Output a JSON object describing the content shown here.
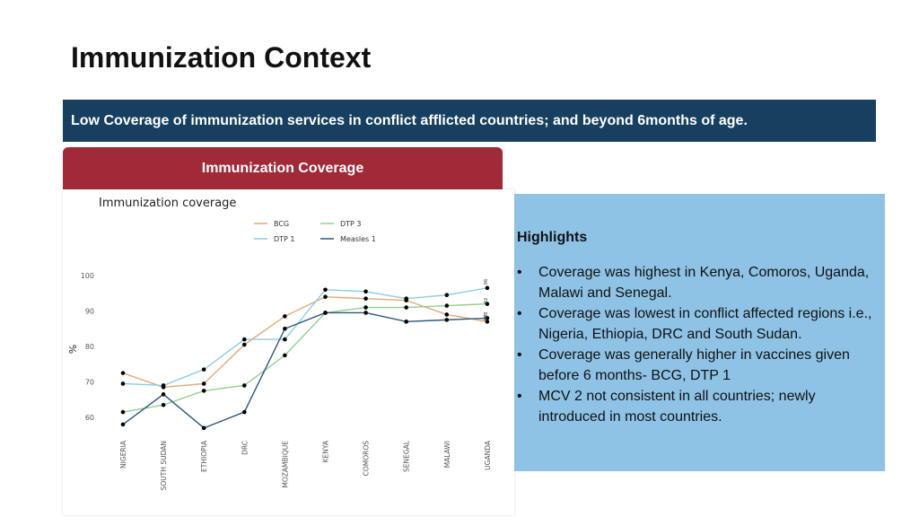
{
  "slide": {
    "title": "Immunization Context",
    "banner": "Low Coverage of immunization services in conflict afflicted countries; and beyond 6months of age.",
    "chart_panel_title": "Immunization Coverage"
  },
  "highlights": {
    "title": "Highlights",
    "bullet_symbol": "•",
    "items": [
      "Coverage was highest in Kenya, Comoros, Uganda, Malawi and Senegal.",
      "Coverage was lowest in conflict affected regions i.e., Nigeria, Ethiopia, DRC and South Sudan.",
      "Coverage was generally higher in vaccines given before 6 months- BCG, DTP 1",
      "MCV 2 not consistent in all countries; newly introduced in most countries."
    ]
  },
  "colors": {
    "banner": "#173f5f",
    "chart_header": "#a12a38",
    "highlights_bg": "#8ec3e5"
  },
  "chart_data": {
    "type": "line",
    "title": "Immunization coverage",
    "ylabel": "%",
    "xlabel": "",
    "ylim": [
      55,
      103
    ],
    "yticks": [
      60,
      70,
      80,
      90,
      100
    ],
    "grid": false,
    "legend_position": "top-center",
    "categories": [
      "NIGERIA",
      "SOUTH SUDAN",
      "ETHIOPIA",
      "DRC",
      "MOZAMBIQUE",
      "KENYA",
      "COMOROS",
      "SENEGAL",
      "MALAWI",
      "UGANDA"
    ],
    "series": [
      {
        "name": "BCG",
        "color": "#e0a877",
        "values": [
          72.5,
          68.5,
          69.5,
          80.5,
          88.5,
          94,
          93.5,
          93,
          89,
          87
        ]
      },
      {
        "name": "DTP 1",
        "color": "#8ccbe6",
        "values": [
          69.5,
          69,
          73.5,
          82,
          82,
          96,
          95.5,
          93.5,
          94.5,
          96.5
        ]
      },
      {
        "name": "DTP 3",
        "color": "#8fd08c",
        "values": [
          61.5,
          63.5,
          67.5,
          69,
          77.5,
          89.5,
          91,
          91,
          91.5,
          92
        ]
      },
      {
        "name": "Measles 1",
        "color": "#2b587d",
        "values": [
          58,
          66.5,
          57,
          61.5,
          85,
          89.5,
          89.5,
          87,
          87.5,
          88
        ]
      }
    ],
    "annotations": [
      "96",
      "92",
      "88",
      "87"
    ]
  }
}
